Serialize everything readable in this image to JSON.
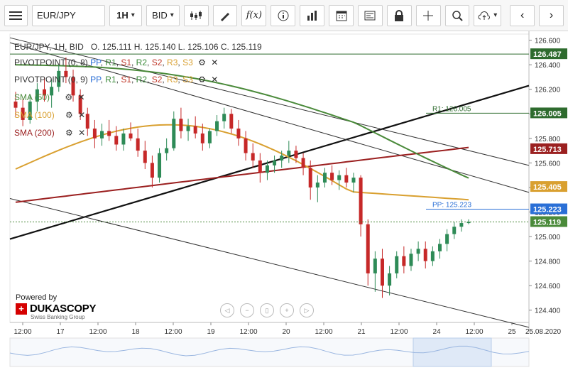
{
  "toolbar": {
    "instrument": "EUR/JPY",
    "period": "1H",
    "offer_side": "BID"
  },
  "header": {
    "title": "EUR/JPY, 1H, BID",
    "ohlc": "O. 125.111 H. 125.140 L. 125.106 C. 125.119"
  },
  "indicators": [
    {
      "name": "PIVOTPOINT (0, 8)",
      "legend": [
        "PP",
        "R1",
        "S1",
        "R2",
        "S2",
        "R3",
        "S3"
      ]
    },
    {
      "name": "PIVOTPOINT (0, 9)",
      "legend": [
        "PP",
        "R1",
        "S1",
        "R2",
        "S2",
        "R3",
        "S3"
      ]
    },
    {
      "name": "SMA (50)",
      "color": "#4a8a3a"
    },
    {
      "name": "SMA (100)",
      "color": "#d9a030"
    },
    {
      "name": "SMA (200)",
      "color": "#9b2020"
    }
  ],
  "branding": {
    "powered": "Powered by",
    "name": "DUKASCOPY",
    "sub": "Swiss Banking Group"
  },
  "chart_data": {
    "type": "candlestick",
    "instrument": "EUR/JPY",
    "timeframe": "1H",
    "ylim": [
      124.3,
      126.65
    ],
    "yticks": [
      "126.600",
      "126.400",
      "126.200",
      "126.000",
      "125.800",
      "125.600",
      "125.400",
      "125.200",
      "125.000",
      "124.800",
      "124.600",
      "124.400"
    ],
    "xticks": [
      "12:00",
      "17",
      "12:00",
      "18",
      "12:00",
      "19",
      "12:00",
      "20",
      "12:00",
      "21",
      "12:00",
      "24",
      "12:00",
      "25",
      "25.08.2020"
    ],
    "price_tags": [
      {
        "label": "126.487",
        "value": 126.487,
        "color": "#2e6b2e"
      },
      {
        "label": "126.005",
        "value": 126.005,
        "color": "#2e6b2e"
      },
      {
        "label": "125.713",
        "value": 125.713,
        "color": "#9b2020"
      },
      {
        "label": "125.405",
        "value": 125.405,
        "color": "#d9a030"
      },
      {
        "label": "125.223",
        "value": 125.223,
        "color": "#2a6fd6"
      },
      {
        "label": "125.119",
        "value": 125.119,
        "color": "#4a8a3a"
      }
    ],
    "annotations": [
      {
        "text": "R1: 126.005",
        "value": 126.005
      },
      {
        "text": "PP: 125.223",
        "value": 125.223
      }
    ],
    "close": 125.119,
    "candles": [
      [
        126.1,
        126.18,
        125.98,
        126.05
      ],
      [
        126.05,
        126.12,
        125.9,
        125.95
      ],
      [
        125.95,
        126.15,
        125.92,
        126.1
      ],
      [
        126.1,
        126.25,
        126.02,
        126.2
      ],
      [
        126.2,
        126.3,
        126.1,
        126.15
      ],
      [
        126.15,
        126.28,
        126.05,
        126.22
      ],
      [
        126.22,
        126.4,
        126.18,
        126.35
      ],
      [
        126.35,
        126.46,
        126.25,
        126.3
      ],
      [
        126.3,
        126.36,
        126.1,
        126.15
      ],
      [
        126.15,
        126.2,
        125.95,
        126.0
      ],
      [
        126.0,
        126.05,
        125.82,
        125.88
      ],
      [
        125.88,
        125.95,
        125.72,
        125.8
      ],
      [
        125.8,
        125.92,
        125.74,
        125.86
      ],
      [
        125.86,
        125.95,
        125.78,
        125.82
      ],
      [
        125.82,
        125.9,
        125.7,
        125.75
      ],
      [
        125.75,
        125.88,
        125.7,
        125.84
      ],
      [
        125.84,
        125.93,
        125.78,
        125.8
      ],
      [
        125.8,
        125.88,
        125.65,
        125.7
      ],
      [
        125.7,
        125.78,
        125.55,
        125.6
      ],
      [
        125.6,
        125.66,
        125.4,
        125.48
      ],
      [
        125.48,
        125.72,
        125.44,
        125.68
      ],
      [
        125.68,
        125.8,
        125.62,
        125.72
      ],
      [
        125.72,
        126.02,
        125.7,
        125.96
      ],
      [
        125.96,
        126.05,
        125.8,
        125.86
      ],
      [
        125.86,
        125.96,
        125.78,
        125.9
      ],
      [
        125.9,
        125.98,
        125.8,
        125.84
      ],
      [
        125.84,
        125.92,
        125.7,
        125.76
      ],
      [
        125.76,
        125.88,
        125.72,
        125.86
      ],
      [
        125.86,
        125.99,
        125.82,
        125.94
      ],
      [
        125.94,
        126.05,
        125.88,
        126.0
      ],
      [
        126.0,
        126.04,
        125.84,
        125.88
      ],
      [
        125.88,
        125.95,
        125.74,
        125.8
      ],
      [
        125.8,
        125.86,
        125.62,
        125.68
      ],
      [
        125.68,
        125.76,
        125.56,
        125.62
      ],
      [
        125.62,
        125.68,
        125.44,
        125.52
      ],
      [
        125.52,
        125.62,
        125.46,
        125.58
      ],
      [
        125.58,
        125.66,
        125.52,
        125.62
      ],
      [
        125.62,
        125.7,
        125.56,
        125.66
      ],
      [
        125.66,
        125.78,
        125.6,
        125.7
      ],
      [
        125.7,
        125.74,
        125.6,
        125.64
      ],
      [
        125.64,
        125.68,
        125.5,
        125.56
      ],
      [
        125.56,
        125.62,
        125.3,
        125.4
      ],
      [
        125.4,
        125.5,
        125.28,
        125.44
      ],
      [
        125.44,
        125.56,
        125.4,
        125.52
      ],
      [
        125.52,
        125.58,
        125.42,
        125.46
      ],
      [
        125.46,
        125.54,
        125.38,
        125.5
      ],
      [
        125.5,
        125.56,
        125.4,
        125.44
      ],
      [
        125.44,
        125.52,
        125.36,
        125.48
      ],
      [
        125.48,
        125.5,
        125.0,
        125.1
      ],
      [
        125.1,
        125.14,
        124.6,
        124.7
      ],
      [
        124.7,
        124.88,
        124.55,
        124.82
      ],
      [
        124.82,
        124.9,
        124.5,
        124.6
      ],
      [
        124.6,
        124.76,
        124.52,
        124.7
      ],
      [
        124.7,
        124.88,
        124.66,
        124.84
      ],
      [
        124.84,
        124.92,
        124.7,
        124.76
      ],
      [
        124.76,
        124.9,
        124.72,
        124.86
      ],
      [
        124.86,
        124.96,
        124.8,
        124.9
      ],
      [
        124.9,
        124.96,
        124.74,
        124.8
      ],
      [
        124.8,
        124.92,
        124.76,
        124.88
      ],
      [
        124.88,
        124.98,
        124.82,
        124.94
      ],
      [
        124.94,
        125.06,
        124.88,
        125.02
      ],
      [
        125.02,
        125.12,
        124.98,
        125.08
      ],
      [
        125.08,
        125.14,
        125.04,
        125.11
      ],
      [
        125.11,
        125.14,
        125.1,
        125.12
      ]
    ]
  }
}
